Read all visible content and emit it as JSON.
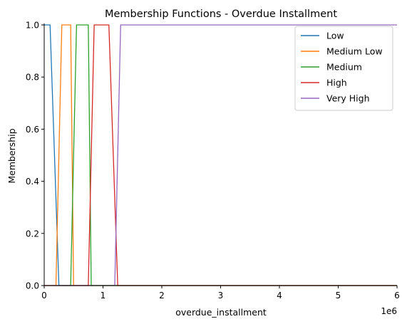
{
  "chart_data": {
    "type": "line",
    "title": "Membership Functions - Overdue Installment",
    "xlabel": "overdue_installment",
    "ylabel": "Membership",
    "x_offset_label": "1e6",
    "xlim": [
      0,
      6000000
    ],
    "ylim": [
      0,
      1.0
    ],
    "x_ticks": [
      0,
      1000000,
      2000000,
      3000000,
      4000000,
      5000000,
      6000000
    ],
    "x_tick_labels": [
      "0",
      "1",
      "2",
      "3",
      "4",
      "5",
      "6"
    ],
    "y_ticks": [
      0.0,
      0.2,
      0.4,
      0.6,
      0.8,
      1.0
    ],
    "y_tick_labels": [
      "0.0",
      "0.2",
      "0.4",
      "0.6",
      "0.8",
      "1.0"
    ],
    "legend_position": "top-right",
    "grid": false,
    "series": [
      {
        "name": "Low",
        "color": "#1f77b4",
        "x": [
          0,
          100000,
          250000,
          6000000
        ],
        "y": [
          1,
          1,
          0,
          0
        ]
      },
      {
        "name": "Medium Low",
        "color": "#ff7f0e",
        "x": [
          0,
          200000,
          300000,
          450000,
          500000,
          6000000
        ],
        "y": [
          0,
          0,
          1,
          1,
          0,
          0
        ]
      },
      {
        "name": "Medium",
        "color": "#2ca02c",
        "x": [
          0,
          450000,
          550000,
          750000,
          800000,
          6000000
        ],
        "y": [
          0,
          0,
          1,
          1,
          0,
          0
        ]
      },
      {
        "name": "High",
        "color": "#d62728",
        "x": [
          0,
          750000,
          850000,
          1100000,
          1250000,
          6000000
        ],
        "y": [
          0,
          0,
          1,
          1,
          0,
          0
        ]
      },
      {
        "name": "Very High",
        "color": "#9467bd",
        "x": [
          0,
          1200000,
          1300000,
          6000000
        ],
        "y": [
          0,
          0,
          1,
          1
        ]
      }
    ]
  }
}
